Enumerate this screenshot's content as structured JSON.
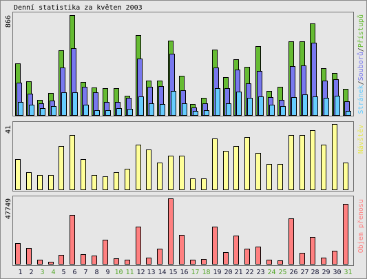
{
  "chart_data": {
    "type": "bar",
    "title": "Denní statistika za květen 2003",
    "categories": [
      "1",
      "2",
      "3",
      "4",
      "5",
      "6",
      "7",
      "8",
      "9",
      "10",
      "11",
      "12",
      "13",
      "14",
      "15",
      "16",
      "17",
      "18",
      "19",
      "20",
      "21",
      "22",
      "23",
      "24",
      "25",
      "26",
      "27",
      "28",
      "29",
      "30",
      "31"
    ],
    "weekend": [
      false,
      false,
      true,
      true,
      false,
      false,
      false,
      false,
      false,
      true,
      true,
      false,
      false,
      false,
      false,
      false,
      true,
      true,
      false,
      false,
      false,
      false,
      false,
      true,
      true,
      false,
      false,
      false,
      false,
      false,
      true
    ],
    "panels": [
      {
        "ylim": [
          0,
          866
        ],
        "separator": "/",
        "series": [
          {
            "name": "Přístupů",
            "color": "#66bb33",
            "values": [
              448,
              293,
              131,
              191,
              561,
              866,
              287,
              239,
              233,
              233,
              167,
              693,
              299,
              299,
              645,
              340,
              96,
              149,
              567,
              328,
              484,
              418,
              597,
              209,
              245,
              639,
              639,
              794,
              406,
              364,
              227
            ]
          },
          {
            "name": "Souborů",
            "color": "#7878ee",
            "values": [
              281,
              185,
              102,
              125,
              412,
              579,
              245,
              197,
              113,
              113,
              149,
              490,
              245,
              251,
              531,
              215,
              66,
              102,
              412,
              233,
              394,
              275,
              382,
              155,
              131,
              424,
              430,
              627,
              299,
              311,
              119
            ]
          },
          {
            "name": "Stránek",
            "color": "#66ccff",
            "values": [
              113,
              90,
              60,
              78,
              197,
              197,
              90,
              42,
              42,
              60,
              54,
              161,
              102,
              96,
              209,
              102,
              36,
              42,
              233,
              102,
              203,
              149,
              161,
              90,
              78,
              155,
              179,
              161,
              149,
              167,
              36
            ]
          }
        ]
      },
      {
        "ylim": [
          0,
          41
        ],
        "series": [
          {
            "name": "Návštěv",
            "color": "#ffff99",
            "values": [
              19,
              11,
              9,
              9,
              27,
              34,
              19,
              9,
              8,
              11,
              13,
              28,
              25,
              17,
              21,
              21,
              7,
              7,
              32,
              24,
              27,
              33,
              23,
              16,
              16,
              34,
              34,
              37,
              28,
              41,
              17
            ]
          }
        ]
      },
      {
        "ylim": [
          0,
          47749
        ],
        "series": [
          {
            "name": "Objem přenosu",
            "color": "#ff8080",
            "values": [
              15100,
              11600,
              3000,
              1500,
              6500,
              35700,
              7000,
              6000,
              17600,
              4000,
              3000,
              27100,
              4500,
              11100,
              47749,
              21100,
              3000,
              3500,
              27100,
              8500,
              20600,
              11100,
              12600,
              3000,
              2500,
              33200,
              8000,
              19600,
              4500,
              9500,
              43700
            ]
          }
        ]
      }
    ]
  },
  "colors": {
    "text": "#000000",
    "separator": "#303030",
    "weekday_label": "#101030",
    "weekend_label": "#55a82b",
    "visits_label": "#e6e650"
  }
}
